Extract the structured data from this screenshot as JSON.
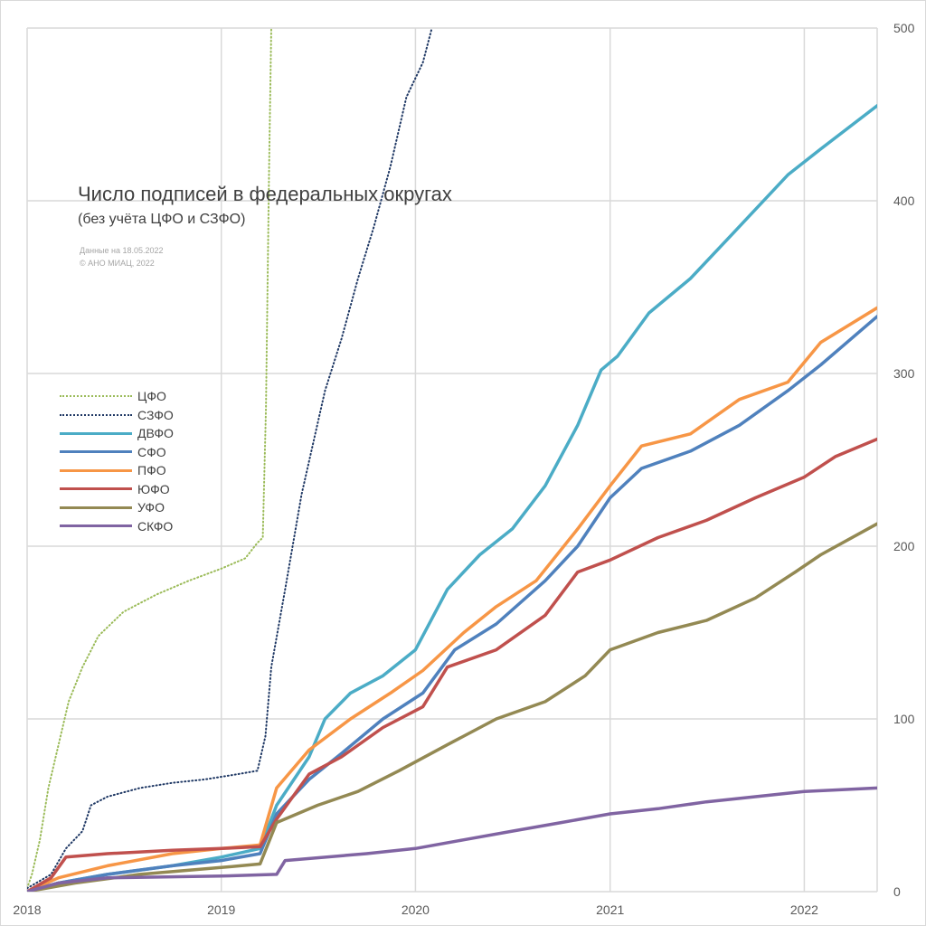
{
  "chart_data": {
    "type": "line",
    "title": "Число подписей в федеральных округах",
    "subtitle": "(без учёта ЦФО и СЗФО)",
    "notes": [
      "Данные на 18.05.2022",
      "© АНО МИАЦ, 2022"
    ],
    "x_unit": "date",
    "xlim": [
      "2018-01-01",
      "2022-05-18"
    ],
    "ylim": [
      0,
      500
    ],
    "y_ticks": [
      0,
      100,
      200,
      300,
      400,
      500
    ],
    "x_tick_labels": [
      "2018",
      "2019",
      "2020",
      "2021",
      "2022"
    ],
    "y_axis_side": "right",
    "grid": true,
    "legend_position": "left",
    "series": [
      {
        "name": "ЦФО",
        "color": "#9bbb59",
        "style": "dotted",
        "points": [
          [
            "2018-01-01",
            2
          ],
          [
            "2018-01-10",
            10
          ],
          [
            "2018-01-25",
            30
          ],
          [
            "2018-02-10",
            60
          ],
          [
            "2018-03-01",
            85
          ],
          [
            "2018-03-20",
            110
          ],
          [
            "2018-04-15",
            130
          ],
          [
            "2018-05-15",
            148
          ],
          [
            "2018-07-01",
            162
          ],
          [
            "2018-09-01",
            172
          ],
          [
            "2018-11-01",
            180
          ],
          [
            "2019-01-01",
            187
          ],
          [
            "2019-02-15",
            193
          ],
          [
            "2019-03-10",
            202
          ],
          [
            "2019-03-20",
            205
          ],
          [
            "2019-03-26",
            280
          ],
          [
            "2019-04-01",
            420
          ],
          [
            "2019-04-05",
            500
          ]
        ]
      },
      {
        "name": "СЗФО",
        "color": "#1f3864",
        "style": "dotted",
        "points": [
          [
            "2018-01-01",
            2
          ],
          [
            "2018-02-15",
            10
          ],
          [
            "2018-03-15",
            25
          ],
          [
            "2018-04-15",
            35
          ],
          [
            "2018-05-01",
            50
          ],
          [
            "2018-06-01",
            55
          ],
          [
            "2018-08-01",
            60
          ],
          [
            "2018-10-01",
            63
          ],
          [
            "2018-12-01",
            65
          ],
          [
            "2019-02-01",
            68
          ],
          [
            "2019-03-10",
            70
          ],
          [
            "2019-03-25",
            90
          ],
          [
            "2019-04-05",
            130
          ],
          [
            "2019-05-01",
            175
          ],
          [
            "2019-06-01",
            230
          ],
          [
            "2019-07-15",
            290
          ],
          [
            "2019-08-15",
            320
          ],
          [
            "2019-09-15",
            355
          ],
          [
            "2019-10-15",
            385
          ],
          [
            "2019-11-15",
            420
          ],
          [
            "2019-12-15",
            460
          ],
          [
            "2020-01-15",
            480
          ],
          [
            "2020-02-01",
            500
          ]
        ]
      },
      {
        "name": "ДВФО",
        "color": "#4bacc6",
        "style": "solid",
        "points": [
          [
            "2018-01-01",
            0
          ],
          [
            "2018-03-01",
            5
          ],
          [
            "2018-06-01",
            10
          ],
          [
            "2018-10-01",
            15
          ],
          [
            "2019-01-01",
            20
          ],
          [
            "2019-03-15",
            25
          ],
          [
            "2019-04-15",
            50
          ],
          [
            "2019-06-15",
            78
          ],
          [
            "2019-07-15",
            100
          ],
          [
            "2019-09-01",
            115
          ],
          [
            "2019-11-01",
            125
          ],
          [
            "2020-01-01",
            140
          ],
          [
            "2020-03-01",
            175
          ],
          [
            "2020-05-01",
            195
          ],
          [
            "2020-07-01",
            210
          ],
          [
            "2020-09-01",
            235
          ],
          [
            "2020-11-01",
            270
          ],
          [
            "2020-12-15",
            302
          ],
          [
            "2021-01-15",
            310
          ],
          [
            "2021-03-15",
            335
          ],
          [
            "2021-06-01",
            355
          ],
          [
            "2021-09-01",
            385
          ],
          [
            "2021-12-01",
            415
          ],
          [
            "2022-02-01",
            430
          ],
          [
            "2022-05-18",
            455
          ]
        ]
      },
      {
        "name": "СФО",
        "color": "#4f81bd",
        "style": "solid",
        "points": [
          [
            "2018-01-01",
            0
          ],
          [
            "2018-03-01",
            5
          ],
          [
            "2018-06-01",
            10
          ],
          [
            "2018-10-01",
            15
          ],
          [
            "2019-01-01",
            18
          ],
          [
            "2019-03-15",
            22
          ],
          [
            "2019-04-15",
            45
          ],
          [
            "2019-06-15",
            65
          ],
          [
            "2019-08-15",
            80
          ],
          [
            "2019-11-01",
            100
          ],
          [
            "2020-01-15",
            115
          ],
          [
            "2020-03-15",
            140
          ],
          [
            "2020-06-01",
            155
          ],
          [
            "2020-09-01",
            180
          ],
          [
            "2020-11-01",
            200
          ],
          [
            "2021-01-01",
            228
          ],
          [
            "2021-03-01",
            245
          ],
          [
            "2021-06-01",
            255
          ],
          [
            "2021-09-01",
            270
          ],
          [
            "2021-12-01",
            290
          ],
          [
            "2022-02-01",
            305
          ],
          [
            "2022-05-18",
            333
          ]
        ]
      },
      {
        "name": "ПФО",
        "color": "#f79646",
        "style": "solid",
        "points": [
          [
            "2018-01-01",
            0
          ],
          [
            "2018-03-01",
            8
          ],
          [
            "2018-06-01",
            15
          ],
          [
            "2018-10-01",
            22
          ],
          [
            "2019-01-01",
            25
          ],
          [
            "2019-03-15",
            27
          ],
          [
            "2019-04-15",
            60
          ],
          [
            "2019-06-15",
            82
          ],
          [
            "2019-09-01",
            100
          ],
          [
            "2019-11-15",
            115
          ],
          [
            "2020-01-15",
            128
          ],
          [
            "2020-04-01",
            150
          ],
          [
            "2020-06-01",
            165
          ],
          [
            "2020-08-15",
            180
          ],
          [
            "2020-11-01",
            210
          ],
          [
            "2021-01-01",
            235
          ],
          [
            "2021-03-01",
            258
          ],
          [
            "2021-06-01",
            265
          ],
          [
            "2021-09-01",
            285
          ],
          [
            "2021-12-01",
            295
          ],
          [
            "2022-02-01",
            318
          ],
          [
            "2022-05-18",
            338
          ]
        ]
      },
      {
        "name": "ЮФО",
        "color": "#c0504d",
        "style": "solid",
        "points": [
          [
            "2018-01-01",
            0
          ],
          [
            "2018-02-15",
            8
          ],
          [
            "2018-03-15",
            20
          ],
          [
            "2018-06-01",
            22
          ],
          [
            "2018-10-01",
            24
          ],
          [
            "2019-01-01",
            25
          ],
          [
            "2019-03-15",
            26
          ],
          [
            "2019-04-15",
            42
          ],
          [
            "2019-06-15",
            68
          ],
          [
            "2019-08-15",
            78
          ],
          [
            "2019-11-01",
            95
          ],
          [
            "2020-01-15",
            107
          ],
          [
            "2020-03-01",
            130
          ],
          [
            "2020-06-01",
            140
          ],
          [
            "2020-09-01",
            160
          ],
          [
            "2020-11-01",
            185
          ],
          [
            "2021-01-01",
            192
          ],
          [
            "2021-04-01",
            205
          ],
          [
            "2021-07-01",
            215
          ],
          [
            "2021-10-01",
            228
          ],
          [
            "2022-01-01",
            240
          ],
          [
            "2022-03-01",
            252
          ],
          [
            "2022-05-18",
            262
          ]
        ]
      },
      {
        "name": "УФО",
        "color": "#938953",
        "style": "solid",
        "points": [
          [
            "2018-01-01",
            0
          ],
          [
            "2018-04-01",
            5
          ],
          [
            "2018-08-01",
            10
          ],
          [
            "2019-01-01",
            14
          ],
          [
            "2019-03-15",
            16
          ],
          [
            "2019-04-15",
            40
          ],
          [
            "2019-07-01",
            50
          ],
          [
            "2019-09-15",
            58
          ],
          [
            "2019-12-01",
            70
          ],
          [
            "2020-03-01",
            85
          ],
          [
            "2020-06-01",
            100
          ],
          [
            "2020-09-01",
            110
          ],
          [
            "2020-11-15",
            125
          ],
          [
            "2021-01-01",
            140
          ],
          [
            "2021-04-01",
            150
          ],
          [
            "2021-07-01",
            157
          ],
          [
            "2021-10-01",
            170
          ],
          [
            "2021-12-15",
            185
          ],
          [
            "2022-02-01",
            195
          ],
          [
            "2022-05-18",
            213
          ]
        ]
      },
      {
        "name": "СКФО",
        "color": "#8064a2",
        "style": "solid",
        "points": [
          [
            "2018-01-01",
            0
          ],
          [
            "2018-03-01",
            5
          ],
          [
            "2018-06-01",
            8
          ],
          [
            "2019-01-01",
            9
          ],
          [
            "2019-04-15",
            10
          ],
          [
            "2019-05-01",
            18
          ],
          [
            "2019-10-01",
            22
          ],
          [
            "2020-01-01",
            25
          ],
          [
            "2020-04-01",
            30
          ],
          [
            "2020-07-01",
            35
          ],
          [
            "2020-10-01",
            40
          ],
          [
            "2021-01-01",
            45
          ],
          [
            "2021-04-01",
            48
          ],
          [
            "2021-07-01",
            52
          ],
          [
            "2021-10-01",
            55
          ],
          [
            "2022-01-01",
            58
          ],
          [
            "2022-05-18",
            60
          ]
        ]
      }
    ]
  }
}
